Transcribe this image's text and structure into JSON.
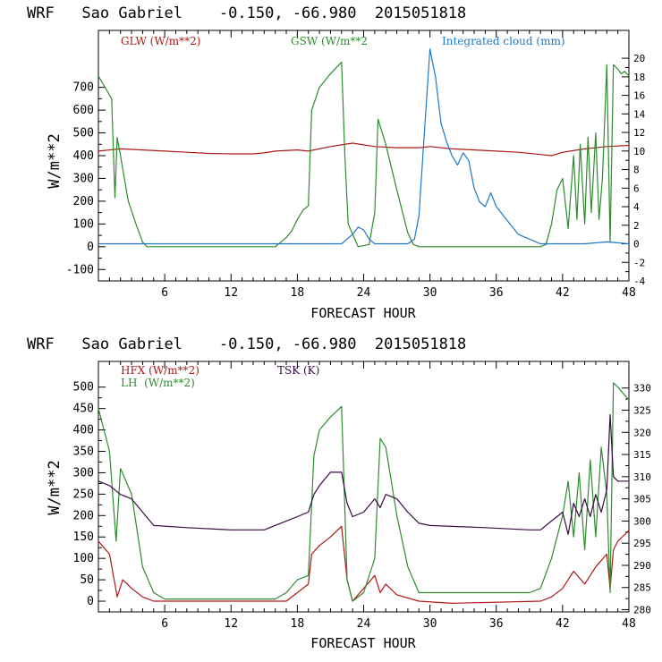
{
  "chart_data": [
    {
      "type": "line",
      "title": "WRF   Sao Gabriel    -0.150, -66.980  2015051818",
      "xlabel": "FORECAST HOUR",
      "ylabel": "W/m**2",
      "xlim": [
        0,
        48
      ],
      "ylim": [
        -150,
        950
      ],
      "y2lim": [
        -4,
        23
      ],
      "xticks": [
        6,
        12,
        18,
        24,
        30,
        36,
        42,
        48
      ],
      "xtick_labels": [
        "6",
        "12",
        "18",
        "24",
        "30",
        "36",
        "42",
        "48"
      ],
      "yticks": [
        -100,
        0,
        100,
        200,
        300,
        400,
        500,
        600,
        700
      ],
      "ytick_labels": [
        "-100",
        "0",
        "100",
        "200",
        "300",
        "400",
        "500",
        "600",
        "700"
      ],
      "y2ticks": [
        -4,
        -2,
        0,
        2,
        4,
        6,
        8,
        10,
        12,
        14,
        16,
        18,
        20
      ],
      "y2tick_labels": [
        "-4",
        "-2",
        "0",
        "2",
        "4",
        "6",
        "8",
        "10",
        "12",
        "14",
        "16",
        "18",
        "20"
      ],
      "series": [
        {
          "name": "GLW (W/m**2)",
          "color": "#b01818",
          "axis": "left",
          "x": [
            0,
            2,
            4,
            6,
            8,
            10,
            12,
            14,
            15,
            16,
            18,
            19,
            21,
            23,
            25,
            27,
            29,
            30,
            32,
            34,
            36,
            38,
            40,
            41,
            42,
            44,
            46,
            48
          ],
          "y": [
            420,
            430,
            425,
            420,
            415,
            410,
            408,
            408,
            412,
            420,
            425,
            420,
            440,
            455,
            440,
            435,
            435,
            440,
            430,
            425,
            420,
            415,
            405,
            400,
            415,
            430,
            440,
            445
          ]
        },
        {
          "name": "GSW (W/m**2",
          "color": "#2e8b2e",
          "axis": "left",
          "x": [
            0,
            1.2,
            1.5,
            1.7,
            2.0,
            2.7,
            3.4,
            4.0,
            4.4,
            16,
            17,
            17.5,
            18,
            18.5,
            19.0,
            19.3,
            20,
            21,
            22,
            22.3,
            22.6,
            23.5,
            24.5,
            25.0,
            25.3,
            26,
            27,
            28,
            28.5,
            29,
            40,
            40.5,
            41,
            41.5,
            42,
            42.5,
            43,
            43.3,
            43.6,
            44,
            44.3,
            44.6,
            45,
            45.3,
            45.6,
            46,
            46.3,
            46.6,
            47,
            47.3,
            47.6,
            48
          ],
          "y": [
            750,
            650,
            215,
            480,
            400,
            200,
            100,
            20,
            0,
            0,
            40,
            70,
            120,
            160,
            180,
            600,
            700,
            760,
            810,
            400,
            100,
            0,
            10,
            150,
            560,
            450,
            250,
            60,
            10,
            0,
            0,
            10,
            100,
            250,
            300,
            80,
            400,
            120,
            450,
            100,
            480,
            150,
            500,
            120,
            300,
            800,
            20,
            800,
            780,
            760,
            770,
            750
          ]
        },
        {
          "name": "Integrated cloud (mm)",
          "color": "#1e78c8",
          "axis": "right",
          "x": [
            0,
            18,
            22,
            23,
            23.5,
            24,
            24.5,
            25,
            28,
            28.6,
            29,
            29.5,
            30,
            30.5,
            31,
            31.5,
            32,
            32.5,
            33,
            33.5,
            34,
            34.5,
            35,
            35.5,
            36,
            37,
            38,
            39,
            40,
            44,
            46,
            48
          ],
          "y": [
            0,
            0,
            0,
            1,
            1.8,
            1.5,
            0.5,
            0,
            0,
            0.5,
            3,
            12,
            21,
            18,
            13,
            11,
            9.5,
            8.5,
            9.8,
            9,
            6,
            4.5,
            4,
            5.5,
            4,
            2.5,
            1,
            0.5,
            0,
            0,
            0.2,
            0
          ]
        }
      ],
      "legend": [
        "GLW (W/m**2)",
        "GSW (W/m**2",
        "Integrated cloud (mm)"
      ]
    },
    {
      "type": "line",
      "title": "WRF   Sao Gabriel    -0.150, -66.980  2015051818",
      "xlabel": "FORECAST HOUR",
      "ylabel": "W/m**2",
      "xlim": [
        0,
        48
      ],
      "ylim": [
        -25,
        560
      ],
      "y2lim": [
        279.5,
        336
      ],
      "xticks": [
        6,
        12,
        18,
        24,
        30,
        36,
        42,
        48
      ],
      "xtick_labels": [
        "6",
        "12",
        "18",
        "24",
        "30",
        "36",
        "42",
        "48"
      ],
      "yticks": [
        0,
        50,
        100,
        150,
        200,
        250,
        300,
        350,
        400,
        450,
        500
      ],
      "ytick_labels": [
        "0",
        "50",
        "100",
        "150",
        "200",
        "250",
        "300",
        "350",
        "400",
        "450",
        "500"
      ],
      "y2ticks": [
        280,
        285,
        290,
        295,
        300,
        305,
        310,
        315,
        320,
        325,
        330
      ],
      "y2tick_labels": [
        "280",
        "285",
        "290",
        "295",
        "300",
        "305",
        "310",
        "315",
        "320",
        "325",
        "330"
      ],
      "series": [
        {
          "name": "HFX (W/m**2)",
          "color": "#b01818",
          "axis": "left",
          "x": [
            0,
            1,
            1.7,
            2.2,
            3,
            4,
            5,
            10,
            17,
            18,
            19,
            19.3,
            20,
            21,
            22,
            22.5,
            23,
            24,
            25,
            25.5,
            26,
            27,
            29,
            32,
            40,
            41,
            42,
            43,
            44,
            45,
            46,
            46.3,
            46.6,
            47,
            48
          ],
          "y": [
            140,
            110,
            10,
            50,
            30,
            10,
            0,
            0,
            0,
            20,
            40,
            110,
            130,
            150,
            175,
            50,
            0,
            30,
            60,
            20,
            40,
            15,
            0,
            -5,
            0,
            10,
            30,
            70,
            40,
            80,
            110,
            30,
            120,
            140,
            165
          ]
        },
        {
          "name": "LH (W/m**2)",
          "color": "#2e8b2e",
          "axis": "left",
          "x": [
            0,
            1,
            1.6,
            2.0,
            3,
            4,
            5,
            6,
            16,
            17,
            18,
            19,
            19.5,
            20,
            21,
            22,
            22.5,
            23,
            24,
            25,
            25.5,
            26,
            27,
            28,
            29,
            39,
            40,
            41,
            42,
            42.5,
            43,
            43.5,
            44,
            44.5,
            45,
            45.5,
            46,
            46.3,
            46.6,
            47,
            48
          ],
          "y": [
            450,
            350,
            140,
            310,
            250,
            80,
            20,
            5,
            5,
            20,
            50,
            60,
            340,
            400,
            430,
            455,
            50,
            0,
            20,
            100,
            380,
            360,
            200,
            80,
            20,
            20,
            30,
            100,
            200,
            280,
            150,
            300,
            120,
            330,
            150,
            360,
            250,
            20,
            510,
            500,
            470
          ]
        },
        {
          "name": "TSK (K)",
          "color": "#3a0a45",
          "axis": "right",
          "x": [
            0,
            1,
            2,
            3,
            4,
            5,
            8,
            12,
            15,
            17,
            18,
            19,
            19.5,
            20,
            21,
            22,
            22.5,
            23,
            24,
            25,
            25.5,
            26,
            27,
            28,
            29,
            30,
            35,
            39,
            40,
            41,
            42,
            42.5,
            43,
            43.5,
            44,
            44.5,
            45,
            45.5,
            46,
            46.3,
            46.6,
            47,
            48
          ],
          "y": [
            309,
            308,
            306,
            305,
            302,
            299,
            298.5,
            298,
            298,
            300,
            301,
            302,
            306,
            308,
            311,
            311,
            304,
            301,
            302,
            305,
            303,
            306,
            305,
            302,
            299.5,
            299,
            298.5,
            298,
            298,
            300,
            302,
            297,
            304,
            301,
            305,
            301,
            306,
            302,
            307,
            324,
            310,
            309,
            309
          ]
        }
      ],
      "legend": [
        "HFX (W/m**2)",
        "LH  (W/m**2)",
        "TSK (K)"
      ]
    }
  ]
}
